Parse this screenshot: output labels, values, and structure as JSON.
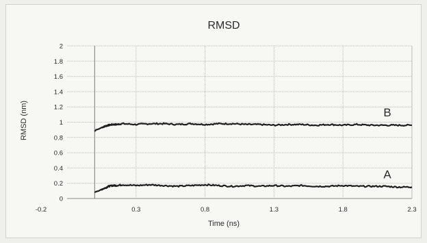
{
  "chart_data": {
    "type": "line",
    "title": "RMSD",
    "xlabel": "Time (ns)",
    "ylabel": "RMSD (nm)",
    "xlim": [
      -0.2,
      2.3
    ],
    "ylim": [
      0,
      2
    ],
    "xticks": [
      -0.2,
      0.3,
      0.8,
      1.3,
      1.8,
      2.3
    ],
    "xtick_labels": [
      "-0.2",
      "0.3",
      "0.8",
      "1.3",
      "1.8",
      "2.3"
    ],
    "yticks": [
      0,
      0.2,
      0.4,
      0.6,
      0.8,
      1,
      1.2,
      1.4,
      1.6,
      1.8,
      2
    ],
    "ytick_labels": [
      "0",
      "0.2",
      "0.4",
      "0.6",
      "0.8",
      "1",
      "1.2",
      "1.4",
      "1.6",
      "1.8",
      "2"
    ],
    "grid": true,
    "series": [
      {
        "name": "B",
        "color": "#1e1e1e",
        "x": [
          0,
          0.01,
          0.03,
          0.05,
          0.08,
          0.1,
          0.13,
          0.16,
          0.2,
          0.3,
          0.4,
          0.5,
          0.6,
          0.7,
          0.8,
          0.9,
          1.0,
          1.1,
          1.2,
          1.3,
          1.4,
          1.5,
          1.6,
          1.7,
          1.8,
          1.9,
          2.0,
          2.1,
          2.2,
          2.3
        ],
        "y": [
          0.88,
          0.9,
          0.91,
          0.93,
          0.95,
          0.96,
          0.97,
          0.97,
          0.98,
          0.97,
          0.98,
          0.98,
          0.97,
          0.98,
          0.97,
          0.98,
          0.98,
          0.97,
          0.97,
          0.96,
          0.97,
          0.97,
          0.96,
          0.97,
          0.96,
          0.97,
          0.96,
          0.96,
          0.96,
          0.96
        ]
      },
      {
        "name": "A",
        "color": "#1e1e1e",
        "x": [
          0,
          0.01,
          0.03,
          0.05,
          0.08,
          0.1,
          0.13,
          0.16,
          0.2,
          0.3,
          0.4,
          0.5,
          0.6,
          0.7,
          0.8,
          0.9,
          1.0,
          1.1,
          1.2,
          1.3,
          1.4,
          1.5,
          1.6,
          1.7,
          1.8,
          1.9,
          2.0,
          2.1,
          2.2,
          2.3
        ],
        "y": [
          0.08,
          0.09,
          0.1,
          0.12,
          0.14,
          0.16,
          0.17,
          0.17,
          0.18,
          0.17,
          0.18,
          0.17,
          0.16,
          0.17,
          0.18,
          0.17,
          0.16,
          0.17,
          0.16,
          0.17,
          0.16,
          0.17,
          0.16,
          0.16,
          0.17,
          0.16,
          0.16,
          0.16,
          0.15,
          0.15
        ]
      }
    ]
  }
}
